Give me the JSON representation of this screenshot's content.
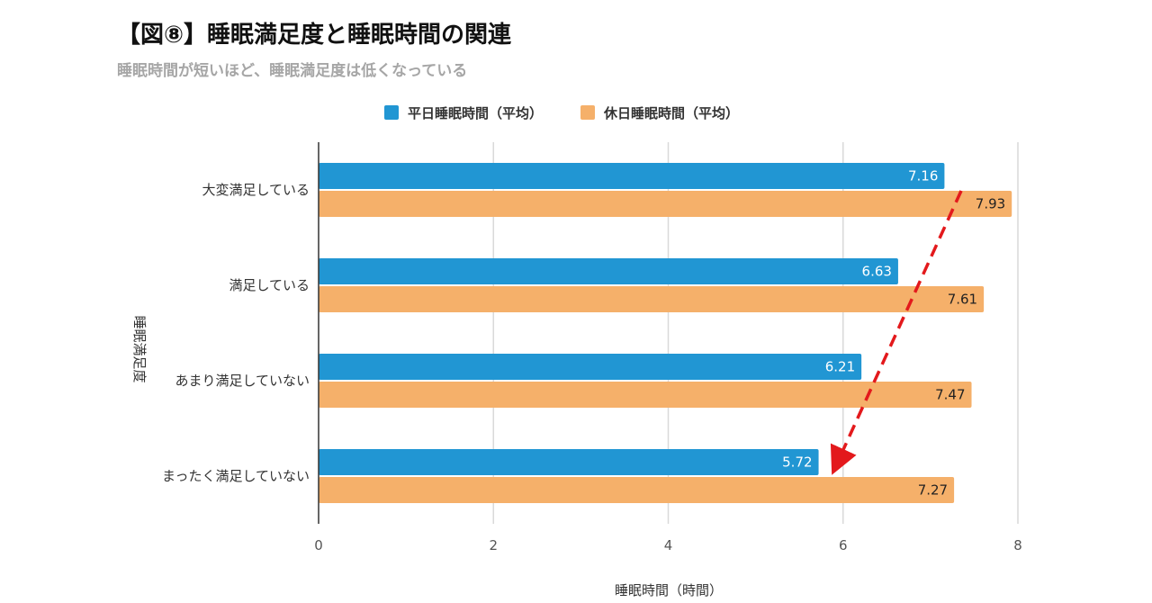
{
  "title": "【図⑧】睡眠満足度と睡眠時間の関連",
  "subtitle": "睡眠時間が短いほど、睡眠満足度は低くなっている",
  "chart_data": {
    "type": "bar",
    "orientation": "horizontal",
    "categories": [
      "大変満足している",
      "満足している",
      "あまり満足していない",
      "まったく満足していない"
    ],
    "series": [
      {
        "name": "平日睡眠時間（平均）",
        "values": [
          7.16,
          6.63,
          6.21,
          5.72
        ],
        "color": "#2196d3"
      },
      {
        "name": "休日睡眠時間（平均）",
        "values": [
          7.93,
          7.61,
          7.47,
          7.27
        ],
        "color": "#f5b06a"
      }
    ],
    "xlabel": "睡眠時間（時間）",
    "ylabel": "睡眠満足度",
    "xlim": [
      0,
      8
    ],
    "xticks": [
      "0",
      "2",
      "4",
      "6",
      "8"
    ],
    "grid": true,
    "legend_position": "top",
    "annotation_color": "#e3191c"
  }
}
